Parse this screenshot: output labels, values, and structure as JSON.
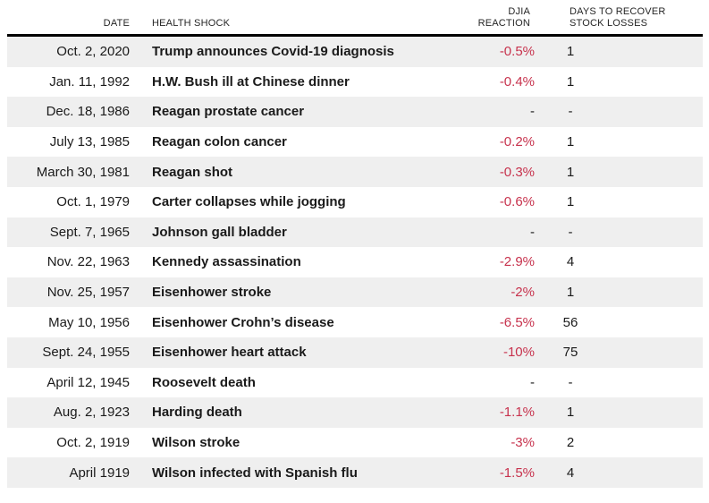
{
  "colors": {
    "negative": "#c7324d",
    "stripe": "#efefef",
    "rule": "#000000",
    "text": "#1a1a1a",
    "header_text": "#262626"
  },
  "header": {
    "date": "DATE",
    "shock": "HEALTH SHOCK",
    "djia_line1": "DJIA",
    "djia_line2": "REACTION",
    "days_line1": "DAYS TO RECOVER",
    "days_line2": "STOCK LOSSES"
  },
  "chart_data": {
    "type": "table",
    "columns": [
      "DATE",
      "HEALTH SHOCK",
      "DJIA REACTION",
      "DAYS TO RECOVER STOCK LOSSES"
    ],
    "rows": [
      {
        "date": "Oct. 2, 2020",
        "shock": "Trump announces Covid-19 diagnosis",
        "djia": "-0.5%",
        "days": "1"
      },
      {
        "date": "Jan. 11, 1992",
        "shock": "H.W. Bush ill at Chinese dinner",
        "djia": "-0.4%",
        "days": "1"
      },
      {
        "date": "Dec. 18, 1986",
        "shock": "Reagan prostate cancer",
        "djia": "-",
        "days": "-"
      },
      {
        "date": "July 13, 1985",
        "shock": "Reagan colon cancer",
        "djia": "-0.2%",
        "days": "1"
      },
      {
        "date": "March 30, 1981",
        "shock": "Reagan shot",
        "djia": "-0.3%",
        "days": "1"
      },
      {
        "date": "Oct. 1, 1979",
        "shock": "Carter collapses while jogging",
        "djia": "-0.6%",
        "days": "1"
      },
      {
        "date": "Sept. 7, 1965",
        "shock": "Johnson gall bladder",
        "djia": "-",
        "days": "-"
      },
      {
        "date": "Nov. 22, 1963",
        "shock": "Kennedy assassination",
        "djia": "-2.9%",
        "days": "4"
      },
      {
        "date": "Nov. 25, 1957",
        "shock": "Eisenhower stroke",
        "djia": "-2%",
        "days": "1"
      },
      {
        "date": "May 10, 1956",
        "shock": "Eisenhower Crohn’s disease",
        "djia": "-6.5%",
        "days": "56"
      },
      {
        "date": "Sept. 24, 1955",
        "shock": "Eisenhower heart attack",
        "djia": "-10%",
        "days": "75"
      },
      {
        "date": "April 12, 1945",
        "shock": "Roosevelt death",
        "djia": "-",
        "days": "-"
      },
      {
        "date": "Aug. 2, 1923",
        "shock": "Harding death",
        "djia": "-1.1%",
        "days": "1"
      },
      {
        "date": "Oct. 2, 1919",
        "shock": "Wilson stroke",
        "djia": "-3%",
        "days": "2"
      },
      {
        "date": "April 1919",
        "shock": "Wilson infected with Spanish flu",
        "djia": "-1.5%",
        "days": "4"
      }
    ]
  }
}
